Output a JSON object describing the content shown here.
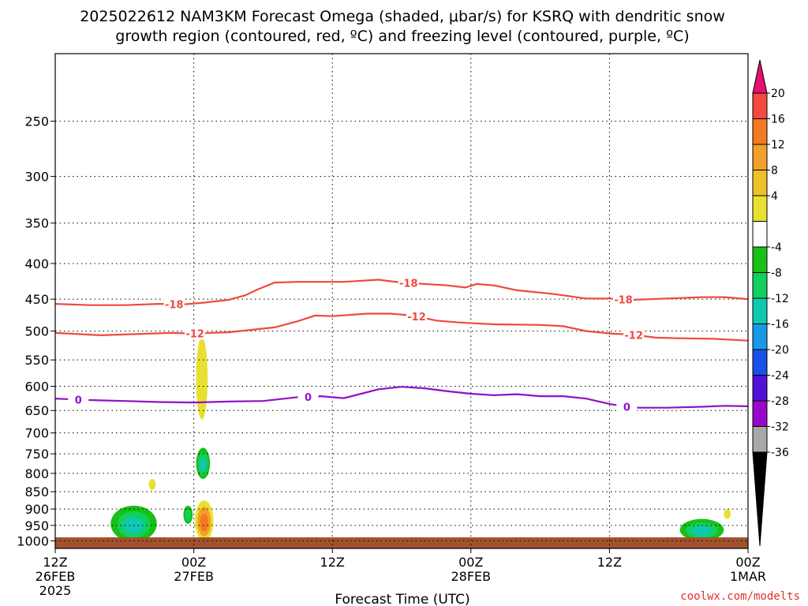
{
  "chart_data": {
    "type": "heatmap",
    "title_line1": "2025022612 NAM3KM Forecast Omega (shaded, μbar/s) for KSRQ with dendritic snow",
    "title_line2": "growth region (contoured, red, ºC) and freezing level (contoured, purple, ºC)",
    "xlabel": "Forecast Time (UTC)",
    "credit": "coolwx.com/modelts",
    "x_range_hours": [
      0,
      60
    ],
    "y_range_hPa": [
      200,
      1025
    ],
    "y_scale": "log",
    "x_ticks": [
      {
        "hour": 0,
        "line1": "12Z",
        "line2": "26FEB",
        "line3": "2025"
      },
      {
        "hour": 12,
        "line1": "00Z",
        "line2": "27FEB",
        "line3": ""
      },
      {
        "hour": 24,
        "line1": "12Z",
        "line2": "",
        "line3": ""
      },
      {
        "hour": 36,
        "line1": "00Z",
        "line2": "28FEB",
        "line3": ""
      },
      {
        "hour": 48,
        "line1": "12Z",
        "line2": "",
        "line3": ""
      },
      {
        "hour": 60,
        "line1": "00Z",
        "line2": "1MAR",
        "line3": ""
      }
    ],
    "y_ticks": [
      "250",
      "300",
      "350",
      "400",
      "450",
      "500",
      "550",
      "600",
      "650",
      "700",
      "750",
      "800",
      "850",
      "900",
      "950",
      "1000"
    ],
    "grid": true,
    "colorbar": {
      "labels": [
        "20",
        "16",
        "12",
        "8",
        "4",
        "-4",
        "-8",
        "-12",
        "-16",
        "-20",
        "-24",
        "-28",
        "-32",
        "-36"
      ],
      "colors": [
        "#e8106e",
        "#f24a3e",
        "#f27a22",
        "#f2a02a",
        "#eec02c",
        "#e8e030",
        "#ffffff",
        "#18c018",
        "#12d060",
        "#10c8b0",
        "#1898e8",
        "#1850e8",
        "#5010d8",
        "#9808c8",
        "#a8a8a8",
        "#000000"
      ]
    },
    "series": [
      {
        "name": "-18",
        "color": "#f04840",
        "points": [
          [
            0,
            457
          ],
          [
            3,
            459
          ],
          [
            6,
            459
          ],
          [
            9,
            457
          ],
          [
            11,
            458
          ],
          [
            13,
            455
          ],
          [
            15,
            451
          ],
          [
            16.5,
            444
          ],
          [
            17.5,
            436
          ],
          [
            19,
            426
          ],
          [
            21,
            425
          ],
          [
            25,
            425
          ],
          [
            28,
            422
          ],
          [
            30,
            426
          ],
          [
            34,
            430
          ],
          [
            35.5,
            433
          ],
          [
            36.5,
            428
          ],
          [
            38,
            430
          ],
          [
            40,
            437
          ],
          [
            43,
            442
          ],
          [
            46,
            449
          ],
          [
            48,
            449
          ],
          [
            50,
            451
          ],
          [
            53,
            449
          ],
          [
            56,
            447
          ],
          [
            58,
            447
          ],
          [
            60,
            450
          ]
        ],
        "labels_at": [
          10.3,
          30.6,
          49.2
        ]
      },
      {
        "name": "-12",
        "color": "#f04840",
        "points": [
          [
            0,
            503
          ],
          [
            2,
            505
          ],
          [
            4,
            507
          ],
          [
            7,
            505
          ],
          [
            10,
            503
          ],
          [
            12,
            504
          ],
          [
            15,
            502
          ],
          [
            17,
            498
          ],
          [
            19,
            494
          ],
          [
            21,
            484
          ],
          [
            22.5,
            475
          ],
          [
            24,
            476
          ],
          [
            27,
            472
          ],
          [
            29,
            472
          ],
          [
            31,
            475
          ],
          [
            33,
            483
          ],
          [
            35,
            486
          ],
          [
            38,
            489
          ],
          [
            42,
            490
          ],
          [
            44,
            492
          ],
          [
            46,
            500
          ],
          [
            48,
            504
          ],
          [
            50,
            506
          ],
          [
            52,
            511
          ],
          [
            54,
            512
          ],
          [
            57,
            513
          ],
          [
            60,
            516
          ]
        ],
        "labels_at": [
          12.1,
          31.3,
          50.1
        ]
      },
      {
        "name": "0",
        "color": "#9010c8",
        "points": [
          [
            0,
            625
          ],
          [
            3,
            628
          ],
          [
            6,
            630
          ],
          [
            9,
            632
          ],
          [
            12,
            633
          ],
          [
            15,
            631
          ],
          [
            18,
            630
          ],
          [
            21,
            622
          ],
          [
            23,
            620
          ],
          [
            25,
            624
          ],
          [
            26.5,
            615
          ],
          [
            28,
            606
          ],
          [
            30,
            601
          ],
          [
            32,
            604
          ],
          [
            34,
            610
          ],
          [
            36,
            615
          ],
          [
            38,
            618
          ],
          [
            40,
            616
          ],
          [
            42,
            620
          ],
          [
            44,
            620
          ],
          [
            46,
            625
          ],
          [
            48,
            636
          ],
          [
            50,
            644
          ],
          [
            53,
            644
          ],
          [
            56,
            642
          ],
          [
            58,
            640
          ],
          [
            60,
            641
          ]
        ],
        "labels_at": [
          2.0,
          21.9,
          49.5
        ]
      }
    ],
    "omega_features": [
      {
        "x": 12.7,
        "p": 590,
        "rx": 0.5,
        "rp_top": 510,
        "rp_bottom": 670,
        "value": 4
      },
      {
        "x": 12.8,
        "p": 775,
        "rx": 0.6,
        "rp_top": 735,
        "rp_bottom": 815,
        "value": -12
      },
      {
        "x": 12.9,
        "p": 940,
        "rx": 0.8,
        "rp_top": 875,
        "rp_bottom": 1000,
        "value": 12
      },
      {
        "x": 6.8,
        "p": 952,
        "rx": 2.0,
        "rp_top": 890,
        "rp_bottom": 1003,
        "value": -12
      },
      {
        "x": 8.4,
        "p": 830,
        "rx": 0.3,
        "rp_top": 815,
        "rp_bottom": 845,
        "value": 4
      },
      {
        "x": 11.5,
        "p": 915,
        "rx": 0.4,
        "rp_top": 890,
        "rp_bottom": 945,
        "value": -8
      },
      {
        "x": 56.0,
        "p": 965,
        "rx": 1.9,
        "rp_top": 930,
        "rp_bottom": 1000,
        "value": -12
      },
      {
        "x": 58.2,
        "p": 915,
        "rx": 0.3,
        "rp_top": 900,
        "rp_bottom": 930,
        "value": 4
      }
    ]
  }
}
